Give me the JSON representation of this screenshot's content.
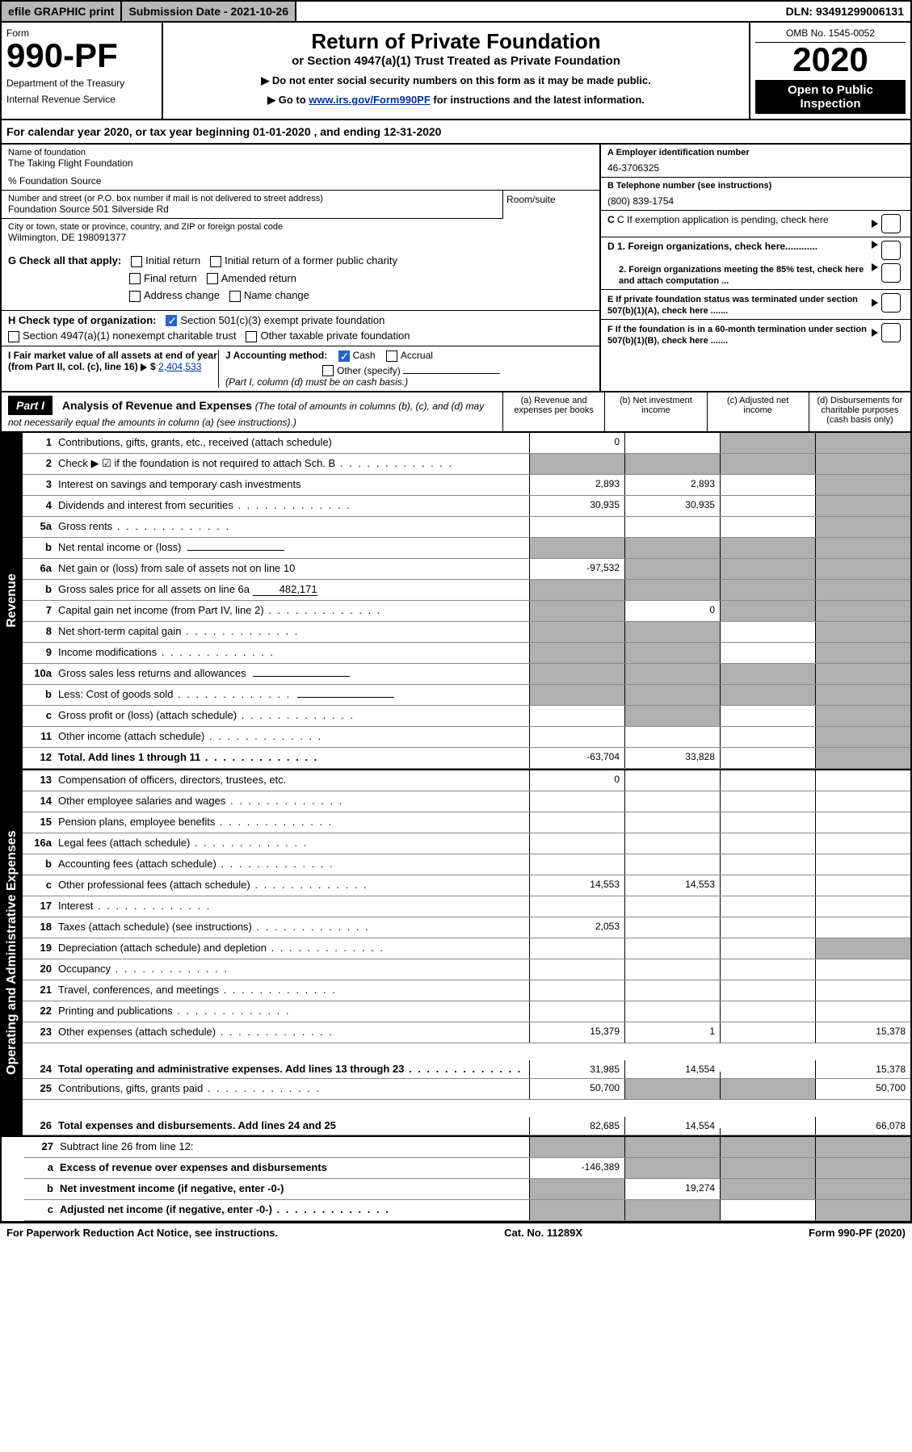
{
  "top_bar": {
    "efile": "efile GRAPHIC print",
    "submission_date_label": "Submission Date - 2021-10-26",
    "dln": "DLN: 93491299006131"
  },
  "header": {
    "form_label": "Form",
    "form_number": "990-PF",
    "dept": "Department of the Treasury",
    "irs": "Internal Revenue Service",
    "title": "Return of Private Foundation",
    "subtitle": "or Section 4947(a)(1) Trust Treated as Private Foundation",
    "note1": "▶ Do not enter social security numbers on this form as it may be made public.",
    "note2_prefix": "▶ Go to ",
    "note2_link": "www.irs.gov/Form990PF",
    "note2_suffix": " for instructions and the latest information.",
    "omb": "OMB No. 1545-0052",
    "year": "2020",
    "open_public": "Open to Public Inspection"
  },
  "cal_year": "For calendar year 2020, or tax year beginning 01-01-2020          , and ending 12-31-2020",
  "info": {
    "name_label": "Name of foundation",
    "name": "The Taking Flight Foundation",
    "pct": "% Foundation Source",
    "addr_label": "Number and street (or P.O. box number if mail is not delivered to street address)",
    "addr": "Foundation Source 501 Silverside Rd",
    "room_label": "Room/suite",
    "city_label": "City or town, state or province, country, and ZIP or foreign postal code",
    "city": "Wilmington, DE  198091377",
    "ein_label": "A Employer identification number",
    "ein": "46-3706325",
    "phone_label": "B Telephone number (see instructions)",
    "phone": "(800) 839-1754",
    "c_label": "C If exemption application is pending, check here",
    "g_label": "G Check all that apply:",
    "g_opts": [
      "Initial return",
      "Initial return of a former public charity",
      "Final return",
      "Amended return",
      "Address change",
      "Name change"
    ],
    "d1": "D 1. Foreign organizations, check here............",
    "d2": "2. Foreign organizations meeting the 85% test, check here and attach computation ...",
    "h_label": "H Check type of organization:",
    "h1": "Section 501(c)(3) exempt private foundation",
    "h2": "Section 4947(a)(1) nonexempt charitable trust",
    "h3": "Other taxable private foundation",
    "e_label": "E  If private foundation status was terminated under section 507(b)(1)(A), check here .......",
    "i_label": "I Fair market value of all assets at end of year (from Part II, col. (c), line 16)",
    "i_val": "2,404,533",
    "j_label": "J Accounting method:",
    "j_cash": "Cash",
    "j_accrual": "Accrual",
    "j_other": "Other (specify)",
    "j_note": "(Part I, column (d) must be on cash basis.)",
    "f_label": "F  If the foundation is in a 60-month termination under section 507(b)(1)(B), check here .......",
    "f_arrow": "▶"
  },
  "part1": {
    "label": "Part I",
    "title": "Analysis of Revenue and Expenses",
    "title_note": "(The total of amounts in columns (b), (c), and (d) may not necessarily equal the amounts in column (a) (see instructions).)",
    "col_a": "(a) Revenue and expenses per books",
    "col_b": "(b) Net investment income",
    "col_c": "(c) Adjusted net income",
    "col_d": "(d) Disbursements for charitable purposes (cash basis only)"
  },
  "sections": {
    "revenue": "Revenue",
    "expenses": "Operating and Administrative Expenses"
  },
  "rows": [
    {
      "n": "1",
      "desc": "Contributions, gifts, grants, etc., received (attach schedule)",
      "a": "0",
      "b": "",
      "c": "shade",
      "d": "shade"
    },
    {
      "n": "2",
      "desc": "Check ▶ ☑ if the foundation is not required to attach Sch. B",
      "a": "shade",
      "b": "shade",
      "c": "shade",
      "d": "shade",
      "dots": true
    },
    {
      "n": "3",
      "desc": "Interest on savings and temporary cash investments",
      "a": "2,893",
      "b": "2,893",
      "c": "",
      "d": "shade"
    },
    {
      "n": "4",
      "desc": "Dividends and interest from securities",
      "a": "30,935",
      "b": "30,935",
      "c": "",
      "d": "shade",
      "dots": true
    },
    {
      "n": "5a",
      "desc": "Gross rents",
      "a": "",
      "b": "",
      "c": "",
      "d": "shade",
      "dots": true
    },
    {
      "n": "b",
      "desc": "Net rental income or (loss)",
      "a": "shade",
      "b": "shade",
      "c": "shade",
      "d": "shade",
      "inline": true
    },
    {
      "n": "6a",
      "desc": "Net gain or (loss) from sale of assets not on line 10",
      "a": "-97,532",
      "b": "shade",
      "c": "shade",
      "d": "shade"
    },
    {
      "n": "b",
      "desc": "Gross sales price for all assets on line 6a",
      "a": "shade",
      "b": "shade",
      "c": "shade",
      "d": "shade",
      "inline_val": "482,171"
    },
    {
      "n": "7",
      "desc": "Capital gain net income (from Part IV, line 2)",
      "a": "shade",
      "b": "0",
      "c": "shade",
      "d": "shade",
      "dots": true
    },
    {
      "n": "8",
      "desc": "Net short-term capital gain",
      "a": "shade",
      "b": "shade",
      "c": "",
      "d": "shade",
      "dots": true
    },
    {
      "n": "9",
      "desc": "Income modifications",
      "a": "shade",
      "b": "shade",
      "c": "",
      "d": "shade",
      "dots": true
    },
    {
      "n": "10a",
      "desc": "Gross sales less returns and allowances",
      "a": "shade",
      "b": "shade",
      "c": "shade",
      "d": "shade",
      "inline": true
    },
    {
      "n": "b",
      "desc": "Less: Cost of goods sold",
      "a": "shade",
      "b": "shade",
      "c": "shade",
      "d": "shade",
      "inline": true,
      "dots": true
    },
    {
      "n": "c",
      "desc": "Gross profit or (loss) (attach schedule)",
      "a": "",
      "b": "shade",
      "c": "",
      "d": "shade",
      "dots": true
    },
    {
      "n": "11",
      "desc": "Other income (attach schedule)",
      "a": "",
      "b": "",
      "c": "",
      "d": "shade",
      "dots": true
    },
    {
      "n": "12",
      "desc": "Total. Add lines 1 through 11",
      "a": "-63,704",
      "b": "33,828",
      "c": "",
      "d": "shade",
      "bold": true,
      "dots": true
    }
  ],
  "exp_rows": [
    {
      "n": "13",
      "desc": "Compensation of officers, directors, trustees, etc.",
      "a": "0",
      "b": "",
      "c": "",
      "d": ""
    },
    {
      "n": "14",
      "desc": "Other employee salaries and wages",
      "a": "",
      "b": "",
      "c": "",
      "d": "",
      "dots": true
    },
    {
      "n": "15",
      "desc": "Pension plans, employee benefits",
      "a": "",
      "b": "",
      "c": "",
      "d": "",
      "dots": true
    },
    {
      "n": "16a",
      "desc": "Legal fees (attach schedule)",
      "a": "",
      "b": "",
      "c": "",
      "d": "",
      "dots": true
    },
    {
      "n": "b",
      "desc": "Accounting fees (attach schedule)",
      "a": "",
      "b": "",
      "c": "",
      "d": "",
      "dots": true
    },
    {
      "n": "c",
      "desc": "Other professional fees (attach schedule)",
      "a": "14,553",
      "b": "14,553",
      "c": "",
      "d": "",
      "dots": true
    },
    {
      "n": "17",
      "desc": "Interest",
      "a": "",
      "b": "",
      "c": "",
      "d": "",
      "dots": true
    },
    {
      "n": "18",
      "desc": "Taxes (attach schedule) (see instructions)",
      "a": "2,053",
      "b": "",
      "c": "",
      "d": "",
      "dots": true
    },
    {
      "n": "19",
      "desc": "Depreciation (attach schedule) and depletion",
      "a": "",
      "b": "",
      "c": "",
      "d": "shade",
      "dots": true
    },
    {
      "n": "20",
      "desc": "Occupancy",
      "a": "",
      "b": "",
      "c": "",
      "d": "",
      "dots": true
    },
    {
      "n": "21",
      "desc": "Travel, conferences, and meetings",
      "a": "",
      "b": "",
      "c": "",
      "d": "",
      "dots": true
    },
    {
      "n": "22",
      "desc": "Printing and publications",
      "a": "",
      "b": "",
      "c": "",
      "d": "",
      "dots": true
    },
    {
      "n": "23",
      "desc": "Other expenses (attach schedule)",
      "a": "15,379",
      "b": "1",
      "c": "",
      "d": "15,378",
      "dots": true
    },
    {
      "n": "24",
      "desc": "Total operating and administrative expenses. Add lines 13 through 23",
      "a": "31,985",
      "b": "14,554",
      "c": "",
      "d": "15,378",
      "bold": true,
      "dots": true,
      "tall": true
    },
    {
      "n": "25",
      "desc": "Contributions, gifts, grants paid",
      "a": "50,700",
      "b": "shade",
      "c": "shade",
      "d": "50,700",
      "dots": true
    },
    {
      "n": "26",
      "desc": "Total expenses and disbursements. Add lines 24 and 25",
      "a": "82,685",
      "b": "14,554",
      "c": "",
      "d": "66,078",
      "bold": true,
      "tall": true
    }
  ],
  "net_rows": [
    {
      "n": "27",
      "desc": "Subtract line 26 from line 12:",
      "a": "shade",
      "b": "shade",
      "c": "shade",
      "d": "shade"
    },
    {
      "n": "a",
      "desc": "Excess of revenue over expenses and disbursements",
      "a": "-146,389",
      "b": "shade",
      "c": "shade",
      "d": "shade",
      "bold": true
    },
    {
      "n": "b",
      "desc": "Net investment income (if negative, enter -0-)",
      "a": "shade",
      "b": "19,274",
      "c": "shade",
      "d": "shade",
      "bold": true
    },
    {
      "n": "c",
      "desc": "Adjusted net income (if negative, enter -0-)",
      "a": "shade",
      "b": "shade",
      "c": "",
      "d": "shade",
      "bold": true,
      "dots": true
    }
  ],
  "footer": {
    "left": "For Paperwork Reduction Act Notice, see instructions.",
    "mid": "Cat. No. 11289X",
    "right": "Form 990-PF (2020)"
  },
  "colors": {
    "shade": "#b0b0b0",
    "link": "#003399",
    "check": "#2962cc"
  }
}
